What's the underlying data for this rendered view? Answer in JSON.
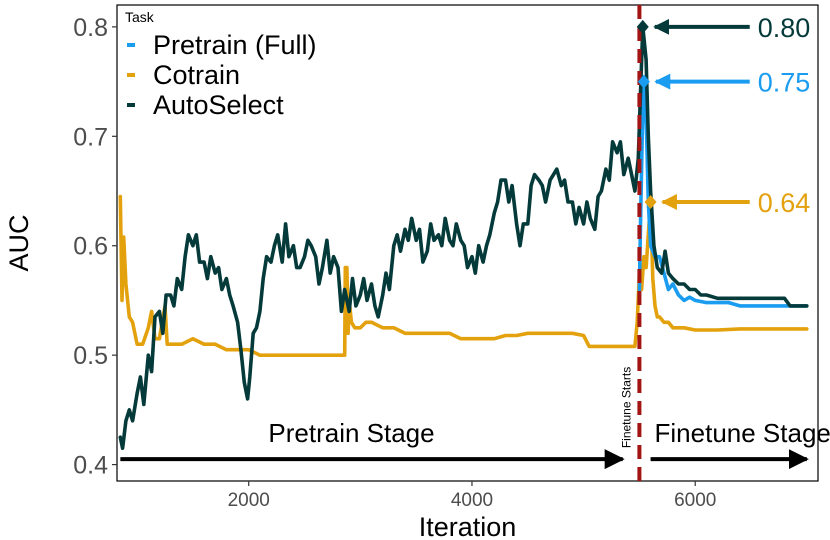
{
  "chart_data": {
    "type": "line",
    "xlabel": "Iteration",
    "ylabel": "AUC",
    "xlim": [
      820,
      7100
    ],
    "ylim": [
      0.385,
      0.82
    ],
    "x_ticks": [
      2000,
      4000,
      6000
    ],
    "x_tick_labels": [
      "2000",
      "4000",
      "6000"
    ],
    "y_ticks": [
      0.4,
      0.5,
      0.6,
      0.7,
      0.8
    ],
    "y_tick_labels": [
      "0.4",
      "0.5",
      "0.6",
      "0.7",
      "0.8"
    ],
    "grid": false,
    "legend": {
      "title": "Task",
      "placement": "top-left",
      "entries": [
        "Pretrain (Full)",
        "Cotrain",
        "AutoSelect"
      ]
    },
    "series": [
      {
        "name": "Pretrain (Full)",
        "color": "#1a9cf0",
        "points": [
          [
            5500,
            0.56
          ],
          [
            5510,
            0.62
          ],
          [
            5525,
            0.7
          ],
          [
            5540,
            0.75
          ],
          [
            5560,
            0.72
          ],
          [
            5580,
            0.64
          ],
          [
            5600,
            0.6
          ],
          [
            5640,
            0.59
          ],
          [
            5680,
            0.59
          ],
          [
            5720,
            0.575
          ],
          [
            5760,
            0.56
          ],
          [
            5800,
            0.565
          ],
          [
            5850,
            0.555
          ],
          [
            5900,
            0.55
          ],
          [
            5950,
            0.553
          ],
          [
            6000,
            0.55
          ],
          [
            6100,
            0.548
          ],
          [
            6200,
            0.548
          ],
          [
            6300,
            0.548
          ],
          [
            6400,
            0.545
          ],
          [
            6500,
            0.545
          ],
          [
            6600,
            0.545
          ],
          [
            6700,
            0.545
          ],
          [
            6800,
            0.545
          ],
          [
            6900,
            0.545
          ],
          [
            7000,
            0.545
          ]
        ]
      },
      {
        "name": "Cotrain",
        "color": "#e3a20d",
        "points": [
          [
            850,
            0.645
          ],
          [
            865,
            0.55
          ],
          [
            880,
            0.608
          ],
          [
            900,
            0.565
          ],
          [
            930,
            0.535
          ],
          [
            960,
            0.53
          ],
          [
            1000,
            0.51
          ],
          [
            1050,
            0.51
          ],
          [
            1100,
            0.525
          ],
          [
            1130,
            0.54
          ],
          [
            1160,
            0.515
          ],
          [
            1200,
            0.515
          ],
          [
            1250,
            0.545
          ],
          [
            1270,
            0.51
          ],
          [
            1300,
            0.51
          ],
          [
            1400,
            0.51
          ],
          [
            1500,
            0.515
          ],
          [
            1600,
            0.51
          ],
          [
            1700,
            0.51
          ],
          [
            1800,
            0.505
          ],
          [
            1900,
            0.505
          ],
          [
            2000,
            0.505
          ],
          [
            2100,
            0.5
          ],
          [
            2200,
            0.5
          ],
          [
            2300,
            0.5
          ],
          [
            2400,
            0.5
          ],
          [
            2500,
            0.5
          ],
          [
            2600,
            0.5
          ],
          [
            2700,
            0.5
          ],
          [
            2800,
            0.5
          ],
          [
            2860,
            0.5
          ],
          [
            2865,
            0.58
          ],
          [
            2880,
            0.58
          ],
          [
            2890,
            0.52
          ],
          [
            2900,
            0.55
          ],
          [
            2920,
            0.53
          ],
          [
            2950,
            0.525
          ],
          [
            3000,
            0.525
          ],
          [
            3050,
            0.53
          ],
          [
            3100,
            0.53
          ],
          [
            3200,
            0.525
          ],
          [
            3300,
            0.525
          ],
          [
            3400,
            0.52
          ],
          [
            3500,
            0.52
          ],
          [
            3600,
            0.52
          ],
          [
            3700,
            0.52
          ],
          [
            3800,
            0.52
          ],
          [
            3900,
            0.515
          ],
          [
            4000,
            0.515
          ],
          [
            4100,
            0.515
          ],
          [
            4200,
            0.515
          ],
          [
            4300,
            0.518
          ],
          [
            4400,
            0.518
          ],
          [
            4500,
            0.52
          ],
          [
            4600,
            0.52
          ],
          [
            4700,
            0.52
          ],
          [
            4800,
            0.52
          ],
          [
            4900,
            0.52
          ],
          [
            5000,
            0.518
          ],
          [
            5050,
            0.508
          ],
          [
            5100,
            0.508
          ],
          [
            5200,
            0.508
          ],
          [
            5300,
            0.508
          ],
          [
            5400,
            0.508
          ],
          [
            5460,
            0.508
          ],
          [
            5480,
            0.53
          ],
          [
            5500,
            0.575
          ],
          [
            5520,
            0.56
          ],
          [
            5540,
            0.59
          ],
          [
            5560,
            0.58
          ],
          [
            5580,
            0.61
          ],
          [
            5600,
            0.64
          ],
          [
            5620,
            0.57
          ],
          [
            5640,
            0.545
          ],
          [
            5660,
            0.535
          ],
          [
            5680,
            0.535
          ],
          [
            5720,
            0.53
          ],
          [
            5760,
            0.53
          ],
          [
            5800,
            0.525
          ],
          [
            5900,
            0.525
          ],
          [
            6000,
            0.523
          ],
          [
            6200,
            0.523
          ],
          [
            6400,
            0.524
          ],
          [
            6600,
            0.524
          ],
          [
            6800,
            0.524
          ],
          [
            7000,
            0.524
          ]
        ]
      },
      {
        "name": "AutoSelect",
        "color": "#053a3a",
        "points": [
          [
            850,
            0.425
          ],
          [
            870,
            0.415
          ],
          [
            900,
            0.44
          ],
          [
            930,
            0.45
          ],
          [
            960,
            0.44
          ],
          [
            1000,
            0.465
          ],
          [
            1030,
            0.48
          ],
          [
            1060,
            0.455
          ],
          [
            1100,
            0.5
          ],
          [
            1130,
            0.485
          ],
          [
            1160,
            0.535
          ],
          [
            1200,
            0.54
          ],
          [
            1230,
            0.52
          ],
          [
            1260,
            0.555
          ],
          [
            1300,
            0.555
          ],
          [
            1330,
            0.545
          ],
          [
            1360,
            0.57
          ],
          [
            1400,
            0.56
          ],
          [
            1430,
            0.59
          ],
          [
            1460,
            0.61
          ],
          [
            1500,
            0.6
          ],
          [
            1530,
            0.61
          ],
          [
            1560,
            0.585
          ],
          [
            1600,
            0.585
          ],
          [
            1630,
            0.57
          ],
          [
            1660,
            0.59
          ],
          [
            1700,
            0.575
          ],
          [
            1730,
            0.58
          ],
          [
            1760,
            0.56
          ],
          [
            1800,
            0.57
          ],
          [
            1830,
            0.555
          ],
          [
            1860,
            0.545
          ],
          [
            1900,
            0.53
          ],
          [
            1930,
            0.505
          ],
          [
            1960,
            0.475
          ],
          [
            1990,
            0.46
          ],
          [
            2010,
            0.48
          ],
          [
            2040,
            0.52
          ],
          [
            2070,
            0.525
          ],
          [
            2100,
            0.54
          ],
          [
            2130,
            0.57
          ],
          [
            2160,
            0.59
          ],
          [
            2200,
            0.585
          ],
          [
            2230,
            0.6
          ],
          [
            2260,
            0.61
          ],
          [
            2300,
            0.585
          ],
          [
            2330,
            0.62
          ],
          [
            2360,
            0.59
          ],
          [
            2400,
            0.6
          ],
          [
            2430,
            0.58
          ],
          [
            2460,
            0.58
          ],
          [
            2500,
            0.59
          ],
          [
            2530,
            0.605
          ],
          [
            2560,
            0.6
          ],
          [
            2600,
            0.59
          ],
          [
            2630,
            0.565
          ],
          [
            2660,
            0.58
          ],
          [
            2700,
            0.605
          ],
          [
            2730,
            0.575
          ],
          [
            2760,
            0.59
          ],
          [
            2800,
            0.58
          ],
          [
            2830,
            0.54
          ],
          [
            2860,
            0.56
          ],
          [
            2900,
            0.54
          ],
          [
            2930,
            0.57
          ],
          [
            2960,
            0.545
          ],
          [
            3000,
            0.555
          ],
          [
            3030,
            0.57
          ],
          [
            3060,
            0.55
          ],
          [
            3100,
            0.565
          ],
          [
            3130,
            0.545
          ],
          [
            3160,
            0.535
          ],
          [
            3200,
            0.555
          ],
          [
            3230,
            0.575
          ],
          [
            3260,
            0.56
          ],
          [
            3300,
            0.6
          ],
          [
            3330,
            0.61
          ],
          [
            3360,
            0.595
          ],
          [
            3400,
            0.615
          ],
          [
            3430,
            0.605
          ],
          [
            3460,
            0.625
          ],
          [
            3500,
            0.605
          ],
          [
            3530,
            0.615
          ],
          [
            3560,
            0.585
          ],
          [
            3600,
            0.595
          ],
          [
            3630,
            0.62
          ],
          [
            3660,
            0.605
          ],
          [
            3700,
            0.61
          ],
          [
            3730,
            0.6
          ],
          [
            3760,
            0.625
          ],
          [
            3800,
            0.605
          ],
          [
            3830,
            0.6
          ],
          [
            3860,
            0.62
          ],
          [
            3900,
            0.605
          ],
          [
            3930,
            0.6
          ],
          [
            3960,
            0.58
          ],
          [
            4000,
            0.59
          ],
          [
            4030,
            0.575
          ],
          [
            4060,
            0.6
          ],
          [
            4100,
            0.585
          ],
          [
            4130,
            0.6
          ],
          [
            4160,
            0.61
          ],
          [
            4200,
            0.63
          ],
          [
            4230,
            0.64
          ],
          [
            4260,
            0.66
          ],
          [
            4300,
            0.66
          ],
          [
            4330,
            0.64
          ],
          [
            4360,
            0.655
          ],
          [
            4400,
            0.62
          ],
          [
            4430,
            0.6
          ],
          [
            4460,
            0.62
          ],
          [
            4500,
            0.62
          ],
          [
            4530,
            0.655
          ],
          [
            4560,
            0.665
          ],
          [
            4600,
            0.66
          ],
          [
            4630,
            0.655
          ],
          [
            4660,
            0.64
          ],
          [
            4700,
            0.66
          ],
          [
            4730,
            0.665
          ],
          [
            4760,
            0.67
          ],
          [
            4800,
            0.655
          ],
          [
            4830,
            0.66
          ],
          [
            4860,
            0.64
          ],
          [
            4900,
            0.64
          ],
          [
            4930,
            0.62
          ],
          [
            4960,
            0.635
          ],
          [
            5000,
            0.62
          ],
          [
            5030,
            0.64
          ],
          [
            5060,
            0.625
          ],
          [
            5100,
            0.615
          ],
          [
            5130,
            0.645
          ],
          [
            5160,
            0.65
          ],
          [
            5200,
            0.67
          ],
          [
            5230,
            0.66
          ],
          [
            5260,
            0.695
          ],
          [
            5300,
            0.685
          ],
          [
            5330,
            0.695
          ],
          [
            5360,
            0.665
          ],
          [
            5400,
            0.68
          ],
          [
            5430,
            0.665
          ],
          [
            5460,
            0.65
          ],
          [
            5490,
            0.68
          ],
          [
            5510,
            0.74
          ],
          [
            5530,
            0.8
          ],
          [
            5560,
            0.77
          ],
          [
            5580,
            0.7
          ],
          [
            5600,
            0.65
          ],
          [
            5630,
            0.6
          ],
          [
            5660,
            0.58
          ],
          [
            5700,
            0.575
          ],
          [
            5730,
            0.595
          ],
          [
            5760,
            0.575
          ],
          [
            5800,
            0.57
          ],
          [
            5850,
            0.565
          ],
          [
            5900,
            0.565
          ],
          [
            5950,
            0.56
          ],
          [
            6000,
            0.56
          ],
          [
            6050,
            0.555
          ],
          [
            6100,
            0.555
          ],
          [
            6200,
            0.552
          ],
          [
            6300,
            0.552
          ],
          [
            6400,
            0.552
          ],
          [
            6500,
            0.552
          ],
          [
            6600,
            0.552
          ],
          [
            6700,
            0.552
          ],
          [
            6800,
            0.552
          ],
          [
            6850,
            0.545
          ],
          [
            6900,
            0.545
          ],
          [
            7000,
            0.545
          ]
        ]
      }
    ],
    "peak_callouts": [
      {
        "series": "AutoSelect",
        "x": 5530,
        "y": 0.8,
        "label": "0.80",
        "color": "#053a3a"
      },
      {
        "series": "Pretrain (Full)",
        "x": 5540,
        "y": 0.75,
        "label": "0.75",
        "color": "#1a9cf0"
      },
      {
        "series": "Cotrain",
        "x": 5600,
        "y": 0.64,
        "label": "0.64",
        "color": "#e3a20d"
      }
    ],
    "finetune_line": {
      "x": 5500,
      "label": "Finetune Starts",
      "color": "#a31515"
    },
    "stages": [
      {
        "label": "Pretrain Stage",
        "x_start": 850,
        "x_end": 5350
      },
      {
        "label": "Finetune Stage",
        "x_start": 5600,
        "x_end": 7000
      }
    ],
    "stage_arrow_y": 0.405
  }
}
